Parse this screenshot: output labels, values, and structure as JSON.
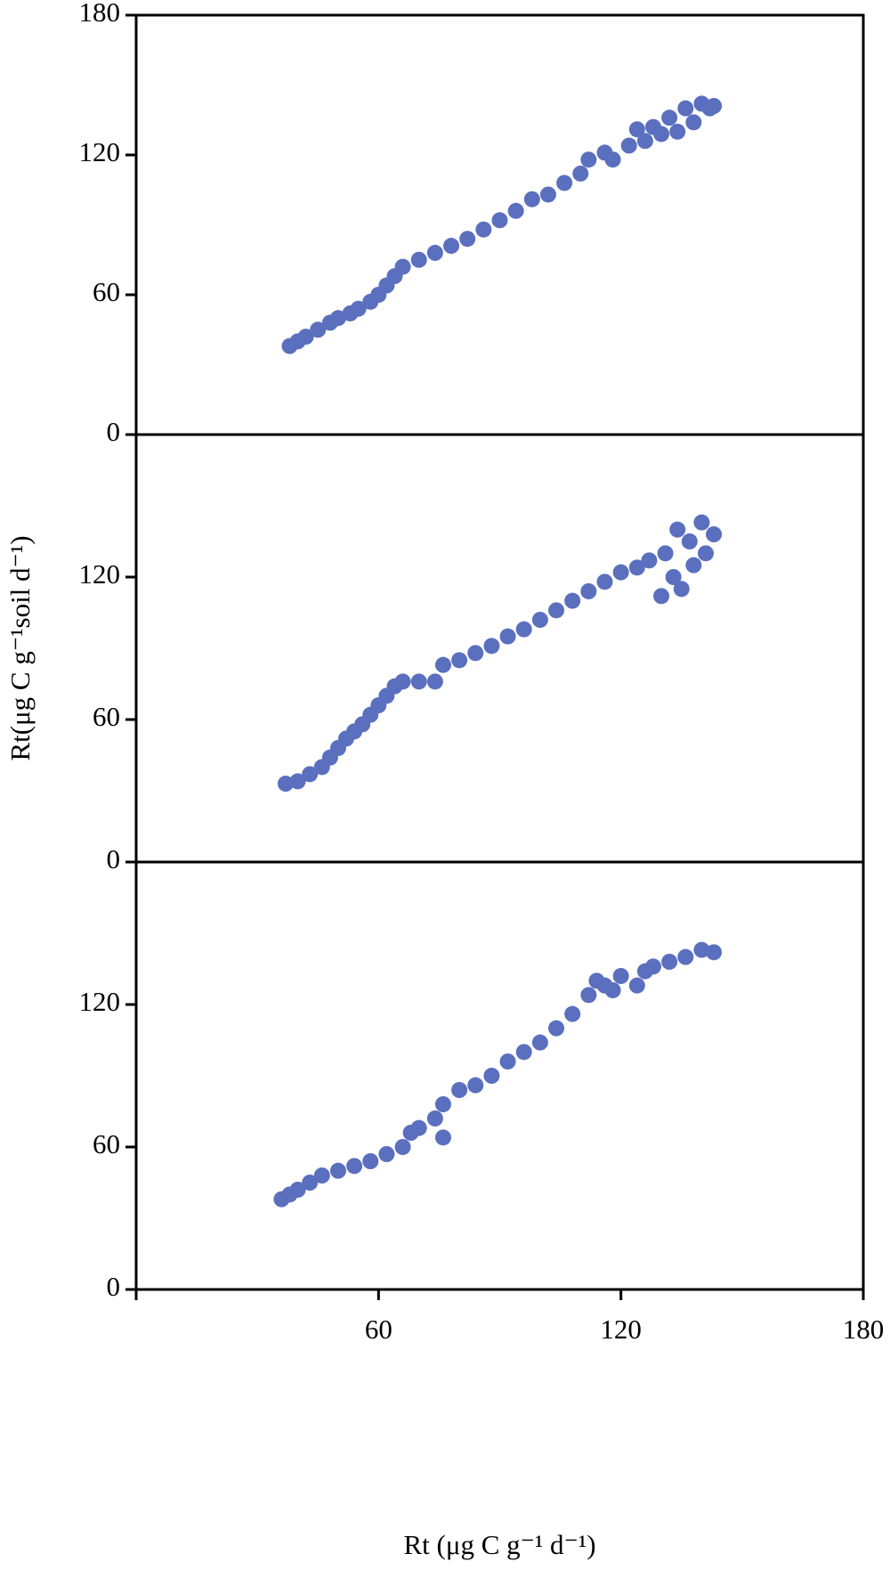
{
  "chart_data": [
    {
      "type": "scatter",
      "color": "#5b6fbf",
      "xlim": [
        0,
        180
      ],
      "ylim": [
        0,
        180
      ],
      "yticks": [
        0,
        60,
        120,
        180
      ],
      "x": [
        38,
        40,
        42,
        45,
        48,
        50,
        53,
        55,
        58,
        60,
        62,
        64,
        66,
        70,
        74,
        78,
        82,
        86,
        90,
        94,
        98,
        102,
        106,
        110,
        112,
        116,
        118,
        122,
        124,
        126,
        128,
        130,
        132,
        134,
        136,
        138,
        140,
        142,
        143
      ],
      "y": [
        38,
        40,
        42,
        45,
        48,
        50,
        52,
        54,
        57,
        60,
        64,
        68,
        72,
        75,
        78,
        81,
        84,
        88,
        92,
        96,
        101,
        103,
        108,
        112,
        118,
        121,
        118,
        124,
        131,
        126,
        132,
        129,
        136,
        130,
        140,
        134,
        142,
        140,
        141
      ]
    },
    {
      "type": "scatter",
      "color": "#5b6fbf",
      "xlim": [
        0,
        180
      ],
      "ylim": [
        0,
        180
      ],
      "yticks": [
        0,
        60,
        120
      ],
      "y_label": "Rt(μg C g⁻¹soil d⁻¹)",
      "x": [
        37,
        40,
        43,
        46,
        48,
        50,
        52,
        54,
        56,
        58,
        60,
        62,
        64,
        66,
        70,
        74,
        76,
        80,
        84,
        88,
        92,
        96,
        100,
        104,
        108,
        112,
        116,
        120,
        124,
        127,
        130,
        131,
        133,
        134,
        135,
        137,
        138,
        140,
        141,
        143
      ],
      "y": [
        33,
        34,
        37,
        40,
        44,
        48,
        52,
        55,
        58,
        62,
        66,
        70,
        74,
        76,
        76,
        76,
        83,
        85,
        88,
        91,
        95,
        98,
        102,
        106,
        110,
        114,
        118,
        122,
        124,
        127,
        112,
        130,
        120,
        140,
        115,
        135,
        125,
        143,
        130,
        138
      ]
    },
    {
      "type": "scatter",
      "color": "#5b6fbf",
      "xlim": [
        0,
        180
      ],
      "ylim": [
        0,
        180
      ],
      "yticks": [
        0,
        60,
        120
      ],
      "xticks": [
        60,
        120,
        180
      ],
      "x_label": "Rt (μg C g⁻¹ d⁻¹)",
      "x": [
        36,
        38,
        40,
        43,
        46,
        50,
        54,
        58,
        62,
        66,
        68,
        70,
        74,
        76,
        76,
        80,
        84,
        88,
        92,
        96,
        100,
        104,
        108,
        112,
        114,
        116,
        118,
        120,
        124,
        126,
        128,
        132,
        136,
        140,
        143
      ],
      "y": [
        38,
        40,
        42,
        45,
        48,
        50,
        52,
        54,
        57,
        60,
        66,
        68,
        72,
        64,
        78,
        84,
        86,
        90,
        96,
        100,
        104,
        110,
        116,
        124,
        130,
        128,
        126,
        132,
        128,
        134,
        136,
        138,
        140,
        143,
        142
      ]
    }
  ]
}
